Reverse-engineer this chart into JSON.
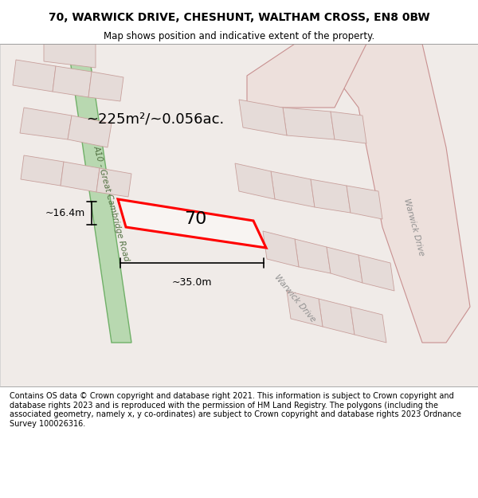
{
  "title_line1": "70, WARWICK DRIVE, CHESHUNT, WALTHAM CROSS, EN8 0BW",
  "title_line2": "Map shows position and indicative extent of the property.",
  "title_fontsize": 10,
  "subtitle_fontsize": 8.5,
  "footer_text": "Contains OS data © Crown copyright and database right 2021. This information is subject to Crown copyright and database rights 2023 and is reproduced with the permission of HM Land Registry. The polygons (including the associated geometry, namely x, y co-ordinates) are subject to Crown copyright and database rights 2023 Ordnance Survey 100026316.",
  "footer_fontsize": 7,
  "bg_color": "#f5f0ee",
  "map_bg": "#f5f0ee",
  "road_fill": "#e8d8d0",
  "road_stroke": "#d4948a",
  "block_fill": "#e0d8d4",
  "block_stroke": "#c8a8a0",
  "green_road_fill": "#b8d8b0",
  "green_road_stroke": "#80b878",
  "target_fill": "none",
  "target_stroke": "#ff0000",
  "target_lw": 2.0,
  "dim_color": "#000000",
  "area_text": "~225m²/~0.056ac.",
  "area_fontsize": 13,
  "dim_width_text": "~35.0m",
  "dim_height_text": "~16.4m",
  "dim_fontsize": 9,
  "label_70_fontsize": 16,
  "road_label_fontsize": 7.5,
  "warwick_drive_color": "#909090",
  "a10_label_color": "#507040"
}
